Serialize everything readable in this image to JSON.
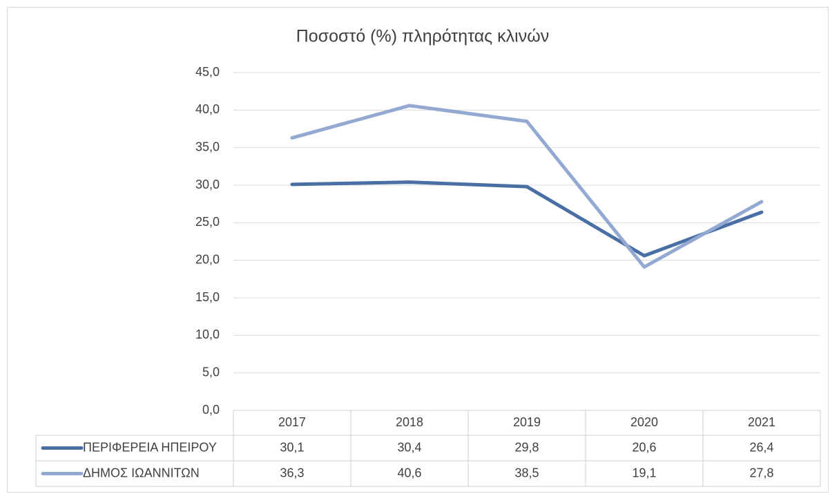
{
  "chart_data": {
    "type": "line",
    "title": "Ποσοστό (%) πληρότητας κλινών",
    "categories": [
      "2017",
      "2018",
      "2019",
      "2020",
      "2021"
    ],
    "series": [
      {
        "name": "ΠΕΡΙΦΕΡΕΙΑ ΗΠΕΙΡΟΥ",
        "color": "#4a6fa5",
        "values": [
          30.1,
          30.4,
          29.8,
          20.6,
          26.4
        ],
        "value_labels": [
          "30,1",
          "30,4",
          "29,8",
          "20,6",
          "26,4"
        ]
      },
      {
        "name": "ΔΗΜΟΣ ΙΩΑΝΝΙΤΩΝ",
        "color": "#94a9d2",
        "values": [
          36.3,
          40.6,
          38.5,
          19.1,
          27.8
        ],
        "value_labels": [
          "36,3",
          "40,6",
          "38,5",
          "19,1",
          "27,8"
        ]
      }
    ],
    "ylim": [
      0,
      45
    ],
    "yticks": [
      {
        "value": 0,
        "label": "0,0"
      },
      {
        "value": 5,
        "label": "5,0"
      },
      {
        "value": 10,
        "label": "10,0"
      },
      {
        "value": 15,
        "label": "15,0"
      },
      {
        "value": 20,
        "label": "20,0"
      },
      {
        "value": 25,
        "label": "25,0"
      },
      {
        "value": 30,
        "label": "30,0"
      },
      {
        "value": 35,
        "label": "35,0"
      },
      {
        "value": 40,
        "label": "40,0"
      },
      {
        "value": 45,
        "label": "45,0"
      }
    ],
    "grid": true
  }
}
